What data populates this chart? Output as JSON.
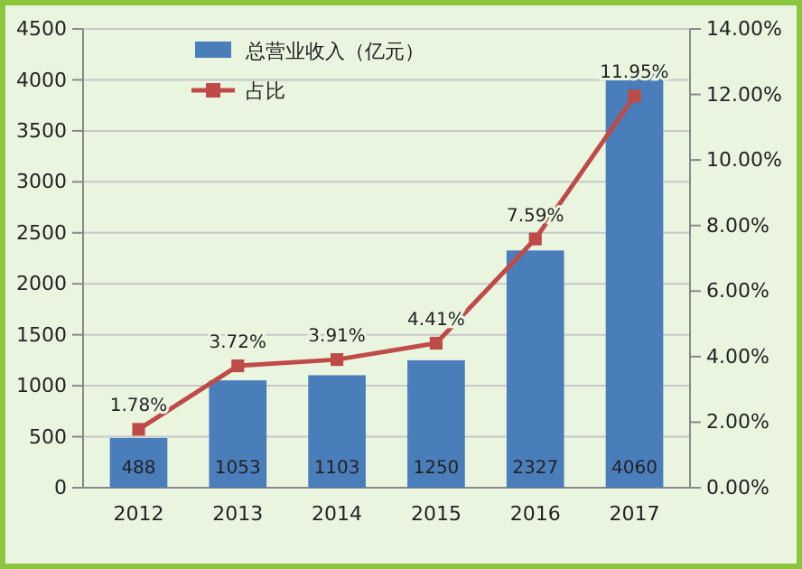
{
  "chart_data": {
    "type": "bar",
    "categories": [
      "2012",
      "2013",
      "2014",
      "2015",
      "2016",
      "2017"
    ],
    "series": [
      {
        "name": "总营业收入（亿元）",
        "color": "#4a7ebb",
        "values": [
          488,
          1053,
          1103,
          1250,
          2327,
          4060
        ],
        "value_labels": [
          "488",
          "1053",
          "1103",
          "1250",
          "2327",
          "4060"
        ]
      },
      {
        "name": "占比",
        "type": "line",
        "axis": "y2",
        "color": "#be4b48",
        "values": [
          1.78,
          3.72,
          3.91,
          4.41,
          7.59,
          11.95
        ],
        "value_labels": [
          "1.78%",
          "3.72%",
          "3.91%",
          "4.41%",
          "7.59%",
          "11.95%"
        ]
      }
    ],
    "ylim": [
      0,
      4500
    ],
    "yticks": [
      0,
      500,
      1000,
      1500,
      2000,
      2500,
      3000,
      3500,
      4000,
      4500
    ],
    "y2lim": [
      0,
      14
    ],
    "y2ticks": [
      {
        "value": 0,
        "label": "0.00%"
      },
      {
        "value": 2,
        "label": "2.00%"
      },
      {
        "value": 4,
        "label": "4.00%"
      },
      {
        "value": 6,
        "label": "6.00%"
      },
      {
        "value": 8,
        "label": "8.00%"
      },
      {
        "value": 10,
        "label": "10.00%"
      },
      {
        "value": 12,
        "label": "12.00%"
      },
      {
        "value": 14,
        "label": "14.00%"
      }
    ],
    "grid": "y",
    "legend": "top left",
    "marker": "square",
    "line_style": "solid"
  }
}
